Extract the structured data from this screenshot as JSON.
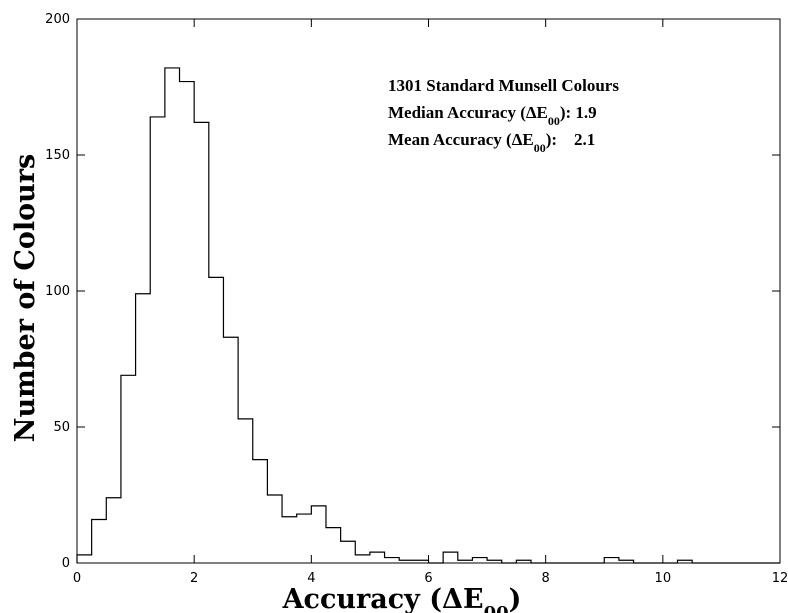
{
  "chart_data": {
    "type": "histogram",
    "title": "",
    "xlabel": "Accuracy (",
    "xlabel_delta": "ΔE",
    "xlabel_sub": "00",
    "ylabel": "Number of Colours",
    "xlim": [
      0,
      12
    ],
    "ylim": [
      0,
      200
    ],
    "x_ticks": [
      0,
      2,
      4,
      6,
      8,
      10,
      12
    ],
    "y_ticks": [
      0,
      50,
      100,
      150,
      200
    ],
    "grid": false,
    "bin_width": 0.25,
    "bin_start": 0,
    "values": [
      3,
      16,
      24,
      69,
      99,
      164,
      182,
      177,
      162,
      105,
      83,
      53,
      38,
      25,
      17,
      18,
      21,
      13,
      8,
      3,
      4,
      2,
      1,
      1,
      0,
      4,
      1,
      2,
      1,
      0,
      1,
      0,
      0,
      0,
      0,
      0,
      2,
      1,
      0,
      0,
      0,
      1,
      0,
      0,
      0,
      0,
      0,
      0
    ],
    "annotations": {
      "line1": "1301 Standard Munsell Colours",
      "line2_prefix": "Median Accuracy (",
      "line2_sub": "00",
      "line2_value": "): 1.9",
      "line3_prefix": "Mean Accuracy (",
      "line3_sub": "00",
      "line3_value": "):    2.1",
      "delta_symbol": "ΔE"
    }
  }
}
